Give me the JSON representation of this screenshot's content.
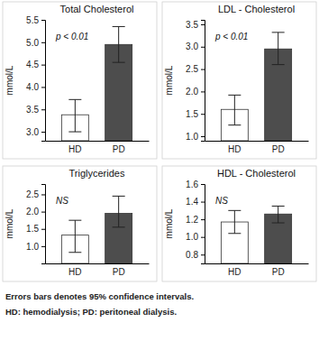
{
  "chart_data": [
    {
      "type": "bar",
      "title": "Total Cholesterol",
      "y_label": "mmol/L",
      "annotation": "p < 0.01",
      "categories": [
        "HD",
        "PD"
      ],
      "values": [
        3.38,
        4.95
      ],
      "ci_low": [
        3.0,
        4.55
      ],
      "ci_high": [
        3.72,
        5.35
      ],
      "colors": [
        "#ffffff",
        "#4d4d4d"
      ],
      "ylim": [
        2.8,
        5.5
      ],
      "yticks": [
        {
          "value": 3,
          "label": "3.0"
        },
        3.5,
        {
          "value": 4,
          "label": "4.0"
        },
        4.5,
        {
          "value": 5,
          "label": "5.0"
        },
        5.5
      ],
      "grid": false
    },
    {
      "type": "bar",
      "title": "LDL - Cholesterol",
      "y_label": "mmol/L",
      "annotation": "p < 0.01",
      "categories": [
        "HD",
        "PD"
      ],
      "values": [
        1.6,
        2.95
      ],
      "ci_low": [
        1.25,
        2.6
      ],
      "ci_high": [
        1.92,
        3.32
      ],
      "colors": [
        "#ffffff",
        "#4d4d4d"
      ],
      "ylim": [
        0.9,
        3.6
      ],
      "yticks": [
        {
          "value": 1,
          "label": "1.0"
        },
        1.5,
        {
          "value": 2,
          "label": "2.0"
        },
        2.5,
        {
          "value": 3,
          "label": "3.0"
        },
        3.5
      ],
      "grid": false
    },
    {
      "type": "bar",
      "title": "Triglycerides",
      "y_label": "mmol/L",
      "annotation": "NS",
      "categories": [
        "HD",
        "PD"
      ],
      "values": [
        1.32,
        1.95
      ],
      "ci_low": [
        0.82,
        1.55
      ],
      "ci_high": [
        1.75,
        2.45
      ],
      "colors": [
        "#ffffff",
        "#4d4d4d"
      ],
      "ylim": [
        0.5,
        2.8
      ],
      "yticks": [
        {
          "value": 1,
          "label": "1.0"
        },
        1.5,
        {
          "value": 2,
          "label": "2.0"
        },
        2.5
      ],
      "grid": false
    },
    {
      "type": "bar",
      "title": "HDL - Cholesterol",
      "y_label": "mmol/L",
      "annotation": "NS",
      "categories": [
        "HD",
        "PD"
      ],
      "values": [
        1.17,
        1.26
      ],
      "ci_low": [
        1.04,
        1.16
      ],
      "ci_high": [
        1.3,
        1.35
      ],
      "colors": [
        "#ffffff",
        "#4d4d4d"
      ],
      "ylim": [
        0.7,
        1.6
      ],
      "yticks": [
        0.8,
        {
          "value": 1,
          "label": "1.0"
        },
        1.2,
        1.4,
        1.6
      ],
      "grid": false
    }
  ],
  "notes": [
    "Errors bars denotes 95% confidence intervals.",
    "HD: hemodialysis; PD: peritoneal dialysis."
  ]
}
